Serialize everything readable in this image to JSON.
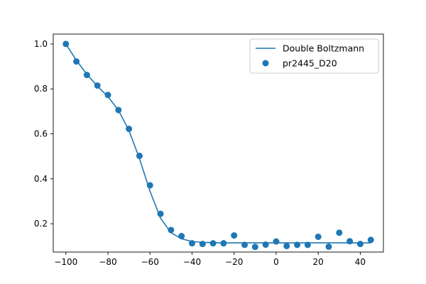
{
  "chart_data": {
    "type": "scatter",
    "xlim": [
      -106,
      51
    ],
    "ylim": [
      0.074,
      1.044
    ],
    "grid": false,
    "legend_position": "top-right",
    "x_ticks": [
      -100,
      -80,
      -60,
      -40,
      -20,
      0,
      20,
      40
    ],
    "x_tick_labels": [
      "−100",
      "−80",
      "−60",
      "−40",
      "−20",
      "0",
      "20",
      "40"
    ],
    "y_ticks": [
      0.2,
      0.4,
      0.6,
      0.8,
      1.0
    ],
    "y_tick_labels": [
      "0.2",
      "0.4",
      "0.6",
      "0.8",
      "1.0"
    ],
    "color": "#1f77b4",
    "series": [
      {
        "name": "Double Boltzmann",
        "kind": "line",
        "x": [
          -100,
          -95,
          -90,
          -85,
          -80,
          -75,
          -70,
          -65,
          -60,
          -55,
          -50,
          -45,
          -40,
          -35,
          -30,
          -25,
          -20,
          -15,
          -10,
          -5,
          0,
          5,
          10,
          15,
          20,
          25,
          30,
          35,
          40,
          45
        ],
        "y": [
          1.0,
          0.927,
          0.865,
          0.812,
          0.766,
          0.705,
          0.615,
          0.49,
          0.345,
          0.225,
          0.16,
          0.133,
          0.121,
          0.117,
          0.116,
          0.115,
          0.115,
          0.115,
          0.115,
          0.115,
          0.115,
          0.115,
          0.115,
          0.115,
          0.115,
          0.115,
          0.115,
          0.115,
          0.115,
          0.115
        ]
      },
      {
        "name": "pr2445_D20",
        "kind": "scatter",
        "x": [
          -100,
          -95,
          -90,
          -85,
          -80,
          -75,
          -70,
          -65,
          -60,
          -55,
          -50,
          -45,
          -40,
          -35,
          -30,
          -25,
          -20,
          -15,
          -10,
          -5,
          0,
          5,
          10,
          15,
          20,
          25,
          30,
          35,
          40,
          45
        ],
        "y": [
          1.0,
          0.922,
          0.862,
          0.815,
          0.773,
          0.706,
          0.622,
          0.502,
          0.371,
          0.244,
          0.172,
          0.145,
          0.113,
          0.11,
          0.113,
          0.113,
          0.148,
          0.106,
          0.097,
          0.107,
          0.121,
          0.101,
          0.106,
          0.106,
          0.142,
          0.098,
          0.16,
          0.122,
          0.11,
          0.128
        ]
      }
    ]
  }
}
